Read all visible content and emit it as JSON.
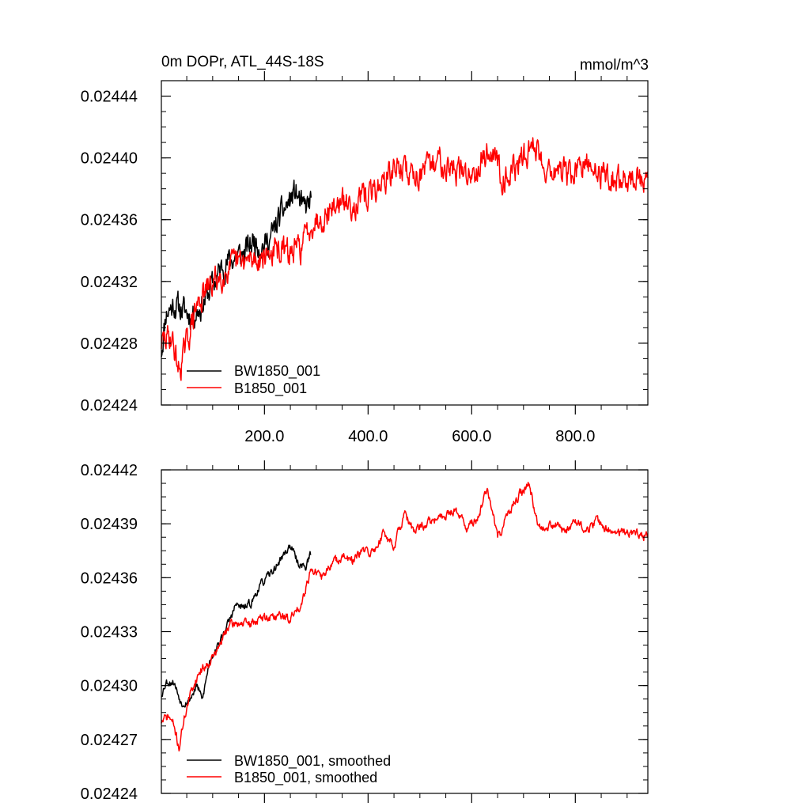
{
  "colors": {
    "BW1850_001": "#000000",
    "B1850_001": "#ff0000",
    "axis": "#000000"
  },
  "chart_data": [
    {
      "type": "line",
      "title": "0m DOPr, ATL_44S-18S",
      "units": "mmol/m^3",
      "xlim": [
        1,
        940
      ],
      "ylim": [
        0.02424,
        0.02445
      ],
      "x_ticks": [
        200,
        400,
        600,
        800
      ],
      "x_tick_labels": [
        "200.0",
        "400.0",
        "600.0",
        "800.0"
      ],
      "y_ticks": [
        0.02424,
        0.02428,
        0.02432,
        0.02436,
        0.0244,
        0.02444
      ],
      "y_tick_labels": [
        "0.02424",
        "0.02428",
        "0.02432",
        "0.02436",
        "0.02440",
        "0.02444"
      ],
      "legend_position": "bottom-left",
      "series": [
        {
          "name": "BW1850_001",
          "color": "#000000",
          "noise": 1.6e-05,
          "seed": 11,
          "points": [
            [
              1,
              0.024275
            ],
            [
              10,
              0.0243
            ],
            [
              25,
              0.024305
            ],
            [
              40,
              0.024302
            ],
            [
              60,
              0.024298
            ],
            [
              80,
              0.024305
            ],
            [
              100,
              0.024318
            ],
            [
              120,
              0.02433
            ],
            [
              140,
              0.024335
            ],
            [
              160,
              0.024338
            ],
            [
              180,
              0.024347
            ],
            [
              200,
              0.024343
            ],
            [
              215,
              0.02435
            ],
            [
              230,
              0.024362
            ],
            [
              245,
              0.02437
            ],
            [
              260,
              0.024378
            ],
            [
              275,
              0.024366
            ],
            [
              290,
              0.024372
            ]
          ]
        },
        {
          "name": "B1850_001",
          "color": "#ff0000",
          "noise": 1.6e-05,
          "seed": 29,
          "points": [
            [
              1,
              0.02428
            ],
            [
              20,
              0.024285
            ],
            [
              35,
              0.024262
            ],
            [
              50,
              0.02428
            ],
            [
              70,
              0.024305
            ],
            [
              90,
              0.024315
            ],
            [
              110,
              0.024322
            ],
            [
              130,
              0.024328
            ],
            [
              150,
              0.024332
            ],
            [
              175,
              0.024333
            ],
            [
              200,
              0.024337
            ],
            [
              230,
              0.02434
            ],
            [
              250,
              0.024338
            ],
            [
              270,
              0.024342
            ],
            [
              290,
              0.024358
            ],
            [
              310,
              0.024362
            ],
            [
              340,
              0.02437
            ],
            [
              370,
              0.02437
            ],
            [
              400,
              0.024375
            ],
            [
              430,
              0.024385
            ],
            [
              460,
              0.024395
            ],
            [
              480,
              0.02439
            ],
            [
              500,
              0.02439
            ],
            [
              520,
              0.024393
            ],
            [
              540,
              0.0244
            ],
            [
              560,
              0.024393
            ],
            [
              580,
              0.02439
            ],
            [
              600,
              0.02439
            ],
            [
              620,
              0.0244
            ],
            [
              640,
              0.024405
            ],
            [
              660,
              0.024388
            ],
            [
              680,
              0.024392
            ],
            [
              700,
              0.0244
            ],
            [
              720,
              0.02441
            ],
            [
              740,
              0.024395
            ],
            [
              760,
              0.024392
            ],
            [
              780,
              0.02439
            ],
            [
              800,
              0.02439
            ],
            [
              820,
              0.024395
            ],
            [
              840,
              0.024392
            ],
            [
              860,
              0.024389
            ],
            [
              880,
              0.024385
            ],
            [
              900,
              0.024387
            ],
            [
              920,
              0.024386
            ],
            [
              940,
              0.024382
            ]
          ]
        }
      ]
    },
    {
      "type": "line",
      "xlim": [
        1,
        940
      ],
      "ylim": [
        0.02424,
        0.02442
      ],
      "y_ticks": [
        0.02424,
        0.02427,
        0.0243,
        0.02433,
        0.02436,
        0.02439,
        0.02442
      ],
      "y_tick_labels": [
        "0.02424",
        "0.02427",
        "0.02430",
        "0.02433",
        "0.02436",
        "0.02439",
        "0.02442"
      ],
      "legend_position": "bottom-left",
      "series": [
        {
          "name": "BW1850_001, smoothed",
          "color": "#000000",
          "noise": 4e-06,
          "seed": 53,
          "points": [
            [
              1,
              0.024295
            ],
            [
              10,
              0.024302
            ],
            [
              25,
              0.024302
            ],
            [
              40,
              0.02429
            ],
            [
              55,
              0.024292
            ],
            [
              70,
              0.0243
            ],
            [
              80,
              0.024292
            ],
            [
              95,
              0.024315
            ],
            [
              110,
              0.024322
            ],
            [
              120,
              0.024328
            ],
            [
              135,
              0.024338
            ],
            [
              145,
              0.024345
            ],
            [
              160,
              0.024343
            ],
            [
              175,
              0.024346
            ],
            [
              190,
              0.024355
            ],
            [
              205,
              0.02436
            ],
            [
              220,
              0.024365
            ],
            [
              235,
              0.024372
            ],
            [
              250,
              0.024378
            ],
            [
              265,
              0.024368
            ],
            [
              280,
              0.024366
            ],
            [
              290,
              0.024374
            ]
          ]
        },
        {
          "name": "B1850_001, smoothed",
          "color": "#ff0000",
          "noise": 4.5e-06,
          "seed": 71,
          "points": [
            [
              1,
              0.02428
            ],
            [
              15,
              0.024283
            ],
            [
              25,
              0.024278
            ],
            [
              35,
              0.024265
            ],
            [
              45,
              0.024282
            ],
            [
              60,
              0.024298
            ],
            [
              75,
              0.024308
            ],
            [
              90,
              0.024312
            ],
            [
              110,
              0.02432
            ],
            [
              130,
              0.024333
            ],
            [
              150,
              0.024335
            ],
            [
              170,
              0.024334
            ],
            [
              190,
              0.024337
            ],
            [
              210,
              0.024338
            ],
            [
              230,
              0.024339
            ],
            [
              250,
              0.024337
            ],
            [
              270,
              0.024345
            ],
            [
              290,
              0.024365
            ],
            [
              310,
              0.02436
            ],
            [
              330,
              0.024368
            ],
            [
              350,
              0.024372
            ],
            [
              370,
              0.024369
            ],
            [
              390,
              0.024375
            ],
            [
              410,
              0.024374
            ],
            [
              430,
              0.024385
            ],
            [
              450,
              0.024378
            ],
            [
              470,
              0.024395
            ],
            [
              490,
              0.024385
            ],
            [
              510,
              0.02439
            ],
            [
              530,
              0.024392
            ],
            [
              550,
              0.024395
            ],
            [
              570,
              0.024398
            ],
            [
              590,
              0.024388
            ],
            [
              610,
              0.024392
            ],
            [
              630,
              0.02441
            ],
            [
              650,
              0.024382
            ],
            [
              670,
              0.024395
            ],
            [
              690,
              0.024405
            ],
            [
              710,
              0.024412
            ],
            [
              730,
              0.024388
            ],
            [
              760,
              0.02439
            ],
            [
              780,
              0.024385
            ],
            [
              800,
              0.024393
            ],
            [
              820,
              0.024385
            ],
            [
              840,
              0.024392
            ],
            [
              860,
              0.024387
            ],
            [
              880,
              0.024385
            ],
            [
              900,
              0.024386
            ],
            [
              920,
              0.024384
            ],
            [
              940,
              0.024383
            ]
          ]
        }
      ]
    }
  ]
}
